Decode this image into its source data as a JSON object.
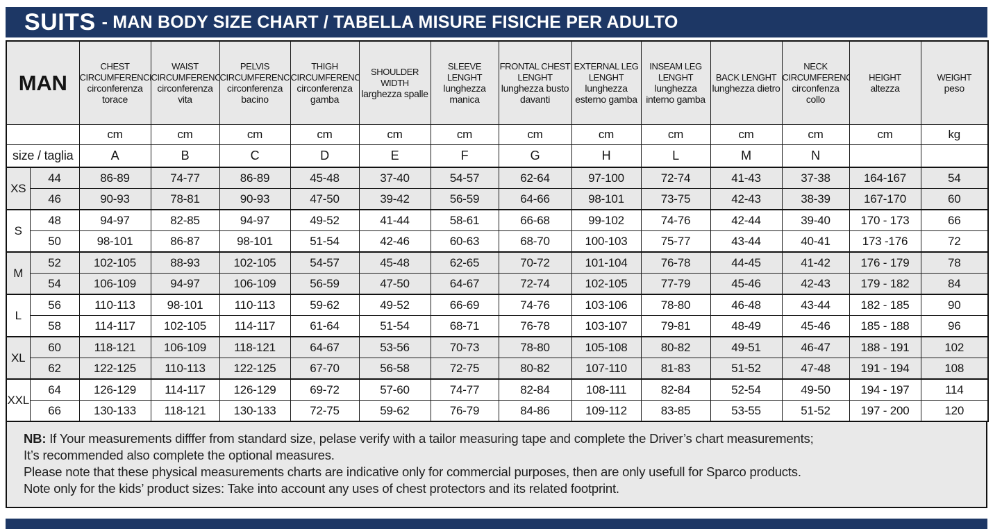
{
  "colors": {
    "navy": "#1d3765",
    "header_gray": "#e8e8e8",
    "shaded_row_gray": "#e8e8e8",
    "notes_gray": "#e9e9e9",
    "border_black": "#111111"
  },
  "header": {
    "brand": "SUITS",
    "title": "- MAN BODY SIZE CHART / TABELLA MISURE FISICHE PER ADULTO"
  },
  "table": {
    "corner_label": "MAN",
    "size_row_label": "size / taglia",
    "columns": [
      {
        "en": "CHEST CIRCUMFERENCE",
        "it": "circonferenza torace",
        "unit": "cm",
        "letter": "A"
      },
      {
        "en": "WAIST CIRCUMFERENCE",
        "it": "circonferenza vita",
        "unit": "cm",
        "letter": "B"
      },
      {
        "en": "PELVIS CIRCUMFERENCE",
        "it": "circonferenza bacino",
        "unit": "cm",
        "letter": "C"
      },
      {
        "en": "THIGH CIRCUMFERENCE",
        "it": "circonferenza gamba",
        "unit": "cm",
        "letter": "D"
      },
      {
        "en": "SHOULDER WIDTH",
        "it": "larghezza spalle",
        "unit": "cm",
        "letter": "E"
      },
      {
        "en": "SLEEVE LENGHT",
        "it": "lunghezza manica",
        "unit": "cm",
        "letter": "F"
      },
      {
        "en": "FRONTAL CHEST LENGHT",
        "it": "lunghezza busto davanti",
        "unit": "cm",
        "letter": "G"
      },
      {
        "en": "EXTERNAL LEG LENGHT",
        "it": "lunghezza esterno gamba",
        "unit": "cm",
        "letter": "H"
      },
      {
        "en": "INSEAM LEG LENGHT",
        "it": "lunghezza interno gamba",
        "unit": "cm",
        "letter": "L"
      },
      {
        "en": "BACK LENGHT",
        "it": "lunghezza dietro",
        "unit": "cm",
        "letter": "M"
      },
      {
        "en": "NECK CIRCUMFERENCE",
        "it": "circonfenza collo",
        "unit": "cm",
        "letter": "N"
      },
      {
        "en": "HEIGHT",
        "it": "altezza",
        "unit": "cm",
        "letter": ""
      },
      {
        "en": "WEIGHT",
        "it": "peso",
        "unit": "kg",
        "letter": ""
      }
    ],
    "groups": [
      {
        "label": "XS",
        "rows": [
          {
            "size": "44",
            "values": [
              "86-89",
              "74-77",
              "86-89",
              "45-48",
              "37-40",
              "54-57",
              "62-64",
              "97-100",
              "72-74",
              "41-43",
              "37-38",
              "164-167",
              "54"
            ]
          },
          {
            "size": "46",
            "values": [
              "90-93",
              "78-81",
              "90-93",
              "47-50",
              "39-42",
              "56-59",
              "64-66",
              "98-101",
              "73-75",
              "42-43",
              "38-39",
              "167-170",
              "60"
            ]
          }
        ]
      },
      {
        "label": "S",
        "rows": [
          {
            "size": "48",
            "values": [
              "94-97",
              "82-85",
              "94-97",
              "49-52",
              "41-44",
              "58-61",
              "66-68",
              "99-102",
              "74-76",
              "42-44",
              "39-40",
              "170 - 173",
              "66"
            ]
          },
          {
            "size": "50",
            "values": [
              "98-101",
              "86-87",
              "98-101",
              "51-54",
              "42-46",
              "60-63",
              "68-70",
              "100-103",
              "75-77",
              "43-44",
              "40-41",
              "173 -176",
              "72"
            ]
          }
        ]
      },
      {
        "label": "M",
        "rows": [
          {
            "size": "52",
            "values": [
              "102-105",
              "88-93",
              "102-105",
              "54-57",
              "45-48",
              "62-65",
              "70-72",
              "101-104",
              "76-78",
              "44-45",
              "41-42",
              "176 - 179",
              "78"
            ]
          },
          {
            "size": "54",
            "values": [
              "106-109",
              "94-97",
              "106-109",
              "56-59",
              "47-50",
              "64-67",
              "72-74",
              "102-105",
              "77-79",
              "45-46",
              "42-43",
              "179 - 182",
              "84"
            ]
          }
        ]
      },
      {
        "label": "L",
        "rows": [
          {
            "size": "56",
            "values": [
              "110-113",
              "98-101",
              "110-113",
              "59-62",
              "49-52",
              "66-69",
              "74-76",
              "103-106",
              "78-80",
              "46-48",
              "43-44",
              "182 - 185",
              "90"
            ]
          },
          {
            "size": "58",
            "values": [
              "114-117",
              "102-105",
              "114-117",
              "61-64",
              "51-54",
              "68-71",
              "76-78",
              "103-107",
              "79-81",
              "48-49",
              "45-46",
              "185 - 188",
              "96"
            ]
          }
        ]
      },
      {
        "label": "XL",
        "rows": [
          {
            "size": "60",
            "values": [
              "118-121",
              "106-109",
              "118-121",
              "64-67",
              "53-56",
              "70-73",
              "78-80",
              "105-108",
              "80-82",
              "49-51",
              "46-47",
              "188 - 191",
              "102"
            ]
          },
          {
            "size": "62",
            "values": [
              "122-125",
              "110-113",
              "122-125",
              "67-70",
              "56-58",
              "72-75",
              "80-82",
              "107-110",
              "81-83",
              "51-52",
              "47-48",
              "191 - 194",
              "108"
            ]
          }
        ]
      },
      {
        "label": "XXL",
        "rows": [
          {
            "size": "64",
            "values": [
              "126-129",
              "114-117",
              "126-129",
              "69-72",
              "57-60",
              "74-77",
              "82-84",
              "108-111",
              "82-84",
              "52-54",
              "49-50",
              "194 - 197",
              "114"
            ]
          },
          {
            "size": "66",
            "values": [
              "130-133",
              "118-121",
              "130-133",
              "72-75",
              "59-62",
              "76-79",
              "84-86",
              "109-112",
              "83-85",
              "53-55",
              "51-52",
              "197 - 200",
              "120"
            ]
          }
        ]
      }
    ]
  },
  "notes": [
    {
      "bold": "NB:",
      "text": "If Your measurements difffer from standard size, pelase verify with a tailor measuring tape and complete the Driver’s chart measurements;"
    },
    {
      "bold": "",
      "text": "It’s recommended also complete the optional measures."
    },
    {
      "bold": "",
      "text": "Please note that these physical measurements charts are indicative only for commercial purposes, then are only usefull for Sparco products."
    },
    {
      "bold": "",
      "text": "Note only for the kids’ product sizes: Take into account any uses of chest protectors and its related footprint."
    }
  ]
}
